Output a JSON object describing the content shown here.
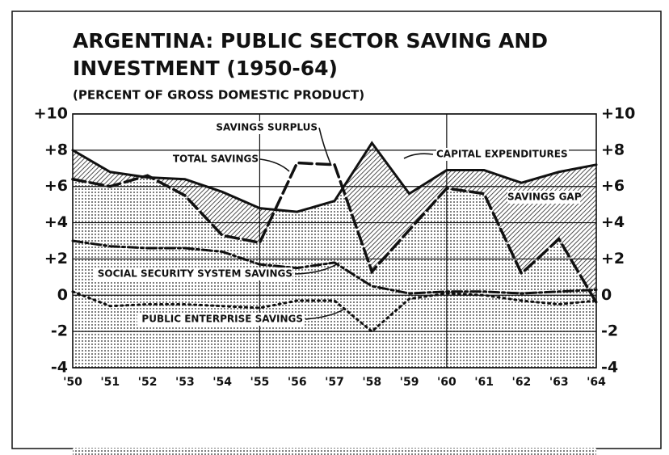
{
  "chart_data": {
    "type": "line",
    "title": [
      "ARGENTINA: PUBLIC SECTOR SAVING AND",
      "INVESTMENT (1950-64)"
    ],
    "subtitle": "(PERCENT OF GROSS DOMESTIC PRODUCT)",
    "categories": [
      "'50",
      "'51",
      "'52",
      "'53",
      "'54",
      "'55",
      "'56",
      "'57",
      "'58",
      "'59",
      "'60",
      "'61",
      "'62",
      "'63",
      "'64"
    ],
    "series": [
      {
        "name": "CAPITAL EXPENDITURES",
        "color": "#111111",
        "style": "solid",
        "values": [
          8.0,
          6.8,
          6.5,
          6.4,
          5.7,
          4.8,
          4.6,
          5.2,
          8.4,
          5.6,
          6.9,
          6.9,
          6.2,
          6.8,
          7.2
        ]
      },
      {
        "name": "TOTAL SAVINGS",
        "color": "#111111",
        "style": "dashed",
        "values": [
          6.4,
          6.0,
          6.6,
          5.5,
          3.3,
          2.9,
          7.3,
          7.2,
          1.3,
          3.6,
          5.9,
          5.6,
          1.2,
          3.1,
          -0.4
        ]
      },
      {
        "name": "SOCIAL SECURITY SYSTEM SAVINGS",
        "color": "#111111",
        "style": "dashdot",
        "values": [
          3.0,
          2.7,
          2.6,
          2.6,
          2.4,
          1.7,
          1.5,
          1.8,
          0.5,
          0.1,
          0.2,
          0.2,
          0.1,
          0.2,
          0.3
        ]
      },
      {
        "name": "PUBLIC ENTERPRISE SAVINGS",
        "color": "#111111",
        "style": "dotted",
        "values": [
          0.2,
          -0.6,
          -0.5,
          -0.5,
          -0.6,
          -0.7,
          -0.3,
          -0.3,
          -2.0,
          -0.2,
          0.1,
          0.0,
          -0.3,
          -0.5,
          -0.3
        ]
      }
    ],
    "annotations": [
      "SAVINGS SURPLUS",
      "SAVINGS GAP"
    ],
    "ylim": [
      -4,
      10
    ],
    "yticks": [
      {
        "value": 10,
        "label": "+10"
      },
      {
        "value": 8,
        "label": "+8"
      },
      {
        "value": 6,
        "label": "+6"
      },
      {
        "value": 4,
        "label": "+4"
      },
      {
        "value": 2,
        "label": "+2"
      },
      0,
      -2,
      -4
    ],
    "grid": true
  }
}
